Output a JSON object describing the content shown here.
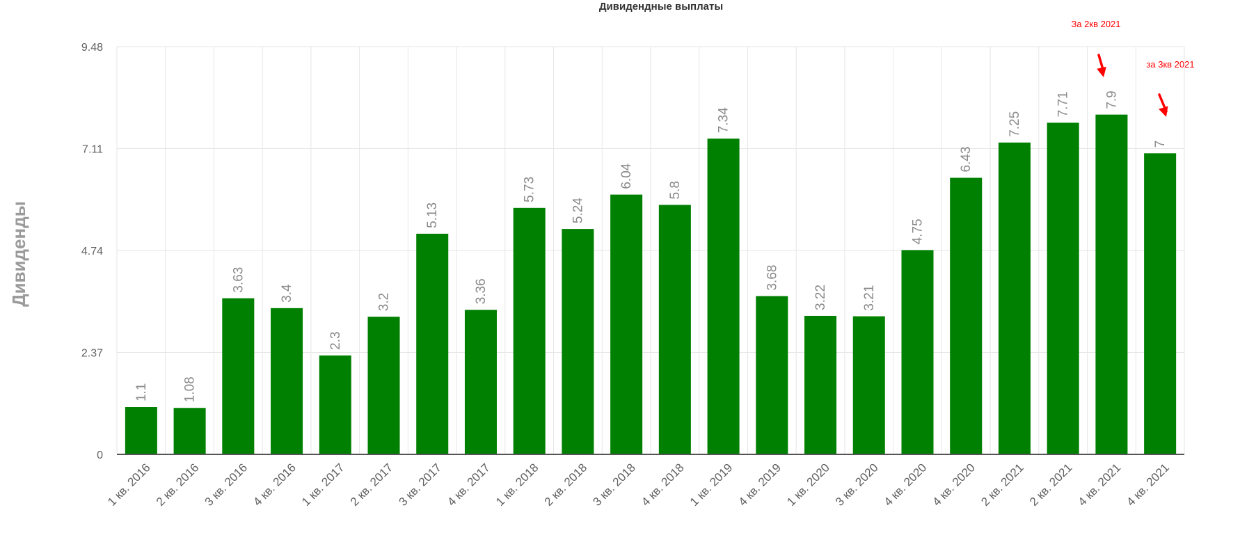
{
  "chart_data": {
    "type": "bar",
    "title": "Дивидендные выплаты",
    "ylabel": "Дивиденды",
    "xlabel": "",
    "ylim": [
      0,
      9.48
    ],
    "yticks": [
      "0",
      "2.37",
      "4.74",
      "7.11",
      "9.48"
    ],
    "categories": [
      "1 кв. 2016",
      "2 кв. 2016",
      "3 кв. 2016",
      "4 кв. 2016",
      "1 кв. 2017",
      "2 кв. 2017",
      "3 кв. 2017",
      "4 кв. 2017",
      "1 кв. 2018",
      "2 кв. 2018",
      "3 кв. 2018",
      "4 кв. 2018",
      "1 кв. 2019",
      "4 кв. 2019",
      "1 кв. 2020",
      "3 кв. 2020",
      "4 кв. 2020",
      "4 кв. 2020",
      "2 кв. 2021",
      "2 кв. 2021",
      "4 кв. 2021",
      "4 кв. 2021"
    ],
    "values": [
      1.1,
      1.08,
      3.63,
      3.4,
      2.3,
      3.2,
      5.13,
      3.36,
      5.73,
      5.24,
      6.04,
      5.8,
      7.34,
      3.68,
      3.22,
      3.21,
      4.75,
      6.43,
      7.25,
      7.71,
      7.9,
      7
    ],
    "data_labels": [
      "1.1",
      "1.08",
      "3.63",
      "3.4",
      "2.3",
      "3.2",
      "5.13",
      "3.36",
      "5.73",
      "5.24",
      "6.04",
      "5.8",
      "7.34",
      "3.68",
      "3.22",
      "3.21",
      "4.75",
      "6.43",
      "7.25",
      "7.71",
      "7.9",
      "7"
    ],
    "bar_color": "#008000",
    "grid": true,
    "annotations": [
      {
        "text": "За 2кв 2021",
        "target_index": 20,
        "color": "#ff0000"
      },
      {
        "text": "за 3кв 2021",
        "target_index": 21,
        "color": "#ff0000"
      }
    ]
  }
}
